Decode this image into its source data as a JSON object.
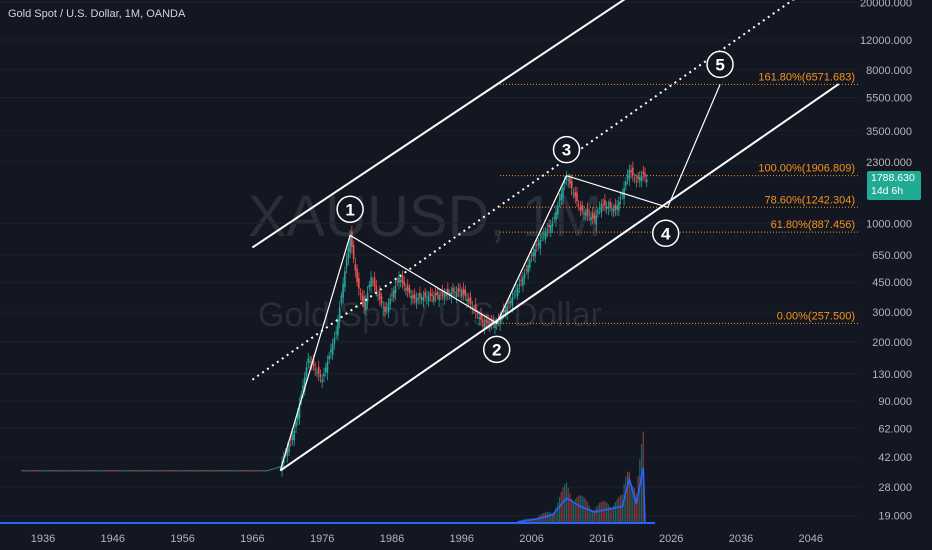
{
  "header": {
    "symbol_name": "Gold Spot / U.S. Dollar",
    "interval": "1M",
    "exchange": "OANDA"
  },
  "watermark": {
    "ticker": "XAUUSD, 1M",
    "description": "Gold Spot / U.S. Dollar"
  },
  "price_tag": {
    "price": "1788.630",
    "countdown": "14d 6h"
  },
  "colors": {
    "background": "#131722",
    "up_candle": "#26a69a",
    "down_candle": "#ef5350",
    "fib_line": "#f7931a",
    "drawing": "#ffffff",
    "volume_ma": "#2962ff",
    "price_tag": "#22ab94"
  },
  "chart_data": {
    "type": "candlestick",
    "title": "Gold Spot / U.S. Dollar, 1M, OANDA",
    "y_scale": "log",
    "y_ticks": [
      "20000.000",
      "12000.000",
      "8000.000",
      "5500.000",
      "3500.000",
      "2300.000",
      "1000.000",
      "650.000",
      "450.000",
      "300.000",
      "200.000",
      "130.000",
      "90.000",
      "62.000",
      "42.000",
      "28.000",
      "19.000"
    ],
    "x_ticks": [
      "1936",
      "1946",
      "1956",
      "1966",
      "1976",
      "1986",
      "1996",
      "2006",
      "2016",
      "2026",
      "2036",
      "2046"
    ],
    "last_price": 1788.63,
    "price_series_approx": [
      {
        "year": 1933,
        "price": 35
      },
      {
        "year": 1968,
        "price": 35
      },
      {
        "year": 1970,
        "price": 37
      },
      {
        "year": 1972,
        "price": 60
      },
      {
        "year": 1974,
        "price": 160
      },
      {
        "year": 1976,
        "price": 120
      },
      {
        "year": 1978,
        "price": 230
      },
      {
        "year": 1980,
        "price": 850
      },
      {
        "year": 1981,
        "price": 450
      },
      {
        "year": 1982,
        "price": 320
      },
      {
        "year": 1983,
        "price": 480
      },
      {
        "year": 1985,
        "price": 300
      },
      {
        "year": 1987,
        "price": 480
      },
      {
        "year": 1989,
        "price": 360
      },
      {
        "year": 1993,
        "price": 380
      },
      {
        "year": 1996,
        "price": 400
      },
      {
        "year": 1999,
        "price": 260
      },
      {
        "year": 2001,
        "price": 257.5
      },
      {
        "year": 2003,
        "price": 350
      },
      {
        "year": 2005,
        "price": 500
      },
      {
        "year": 2006,
        "price": 650
      },
      {
        "year": 2008,
        "price": 900
      },
      {
        "year": 2009,
        "price": 1000
      },
      {
        "year": 2011,
        "price": 1906.8
      },
      {
        "year": 2013,
        "price": 1200
      },
      {
        "year": 2015,
        "price": 1060
      },
      {
        "year": 2016,
        "price": 1300
      },
      {
        "year": 2018,
        "price": 1200
      },
      {
        "year": 2019,
        "price": 1500
      },
      {
        "year": 2020,
        "price": 2070
      },
      {
        "year": 2021,
        "price": 1780
      },
      {
        "year": 2022,
        "price": 1950
      },
      {
        "year": 2022.6,
        "price": 1788.63
      }
    ],
    "fibonacci_levels": [
      {
        "ratio": "161.80%",
        "price": 6571.683,
        "label": "161.80%(6571.683)"
      },
      {
        "ratio": "100.00%",
        "price": 1906.809,
        "label": "100.00%(1906.809)"
      },
      {
        "ratio": "78.60%",
        "price": 1242.304,
        "label": "78.60%(1242.304)"
      },
      {
        "ratio": "61.80%",
        "price": 887.456,
        "label": "61.80%(887.456)"
      },
      {
        "ratio": "0.00%",
        "price": 257.5,
        "label": "0.00%(257.500)"
      }
    ],
    "wave_labels": [
      {
        "label": "1",
        "year": 1980,
        "price": 850
      },
      {
        "label": "2",
        "year": 2001,
        "price": 257.5
      },
      {
        "label": "3",
        "year": 2011,
        "price": 1906.8
      },
      {
        "label": "4",
        "year": 2025.5,
        "price": 1242.3
      },
      {
        "label": "5",
        "year": 2033,
        "price": 6571.7
      }
    ],
    "wave_path": [
      {
        "year": 1970,
        "price": 35
      },
      {
        "year": 1980,
        "price": 850
      },
      {
        "year": 2001,
        "price": 257.5
      },
      {
        "year": 2011,
        "price": 1906.8
      },
      {
        "year": 2025.5,
        "price": 1242.3
      },
      {
        "year": 2033,
        "price": 6571.7
      }
    ],
    "channel": {
      "lower": [
        {
          "year": 1970,
          "price": 35
        },
        {
          "year": 2050,
          "price": 6600
        }
      ],
      "upper": [
        {
          "year": 1966,
          "price": 720
        },
        {
          "year": 2024,
          "price": 28000
        }
      ],
      "middle_dotted": [
        {
          "year": 1966,
          "price": 120
        },
        {
          "year": 2048,
          "price": 28000
        }
      ]
    },
    "volume_approx": [
      {
        "year": 2004,
        "value": 0.02
      },
      {
        "year": 2007,
        "value": 0.08
      },
      {
        "year": 2009,
        "value": 0.15
      },
      {
        "year": 2011,
        "value": 0.45
      },
      {
        "year": 2013,
        "value": 0.3
      },
      {
        "year": 2015,
        "value": 0.2
      },
      {
        "year": 2017,
        "value": 0.25
      },
      {
        "year": 2019,
        "value": 0.3
      },
      {
        "year": 2020,
        "value": 0.8
      },
      {
        "year": 2021,
        "value": 0.35
      },
      {
        "year": 2022,
        "value": 1.0
      }
    ]
  }
}
